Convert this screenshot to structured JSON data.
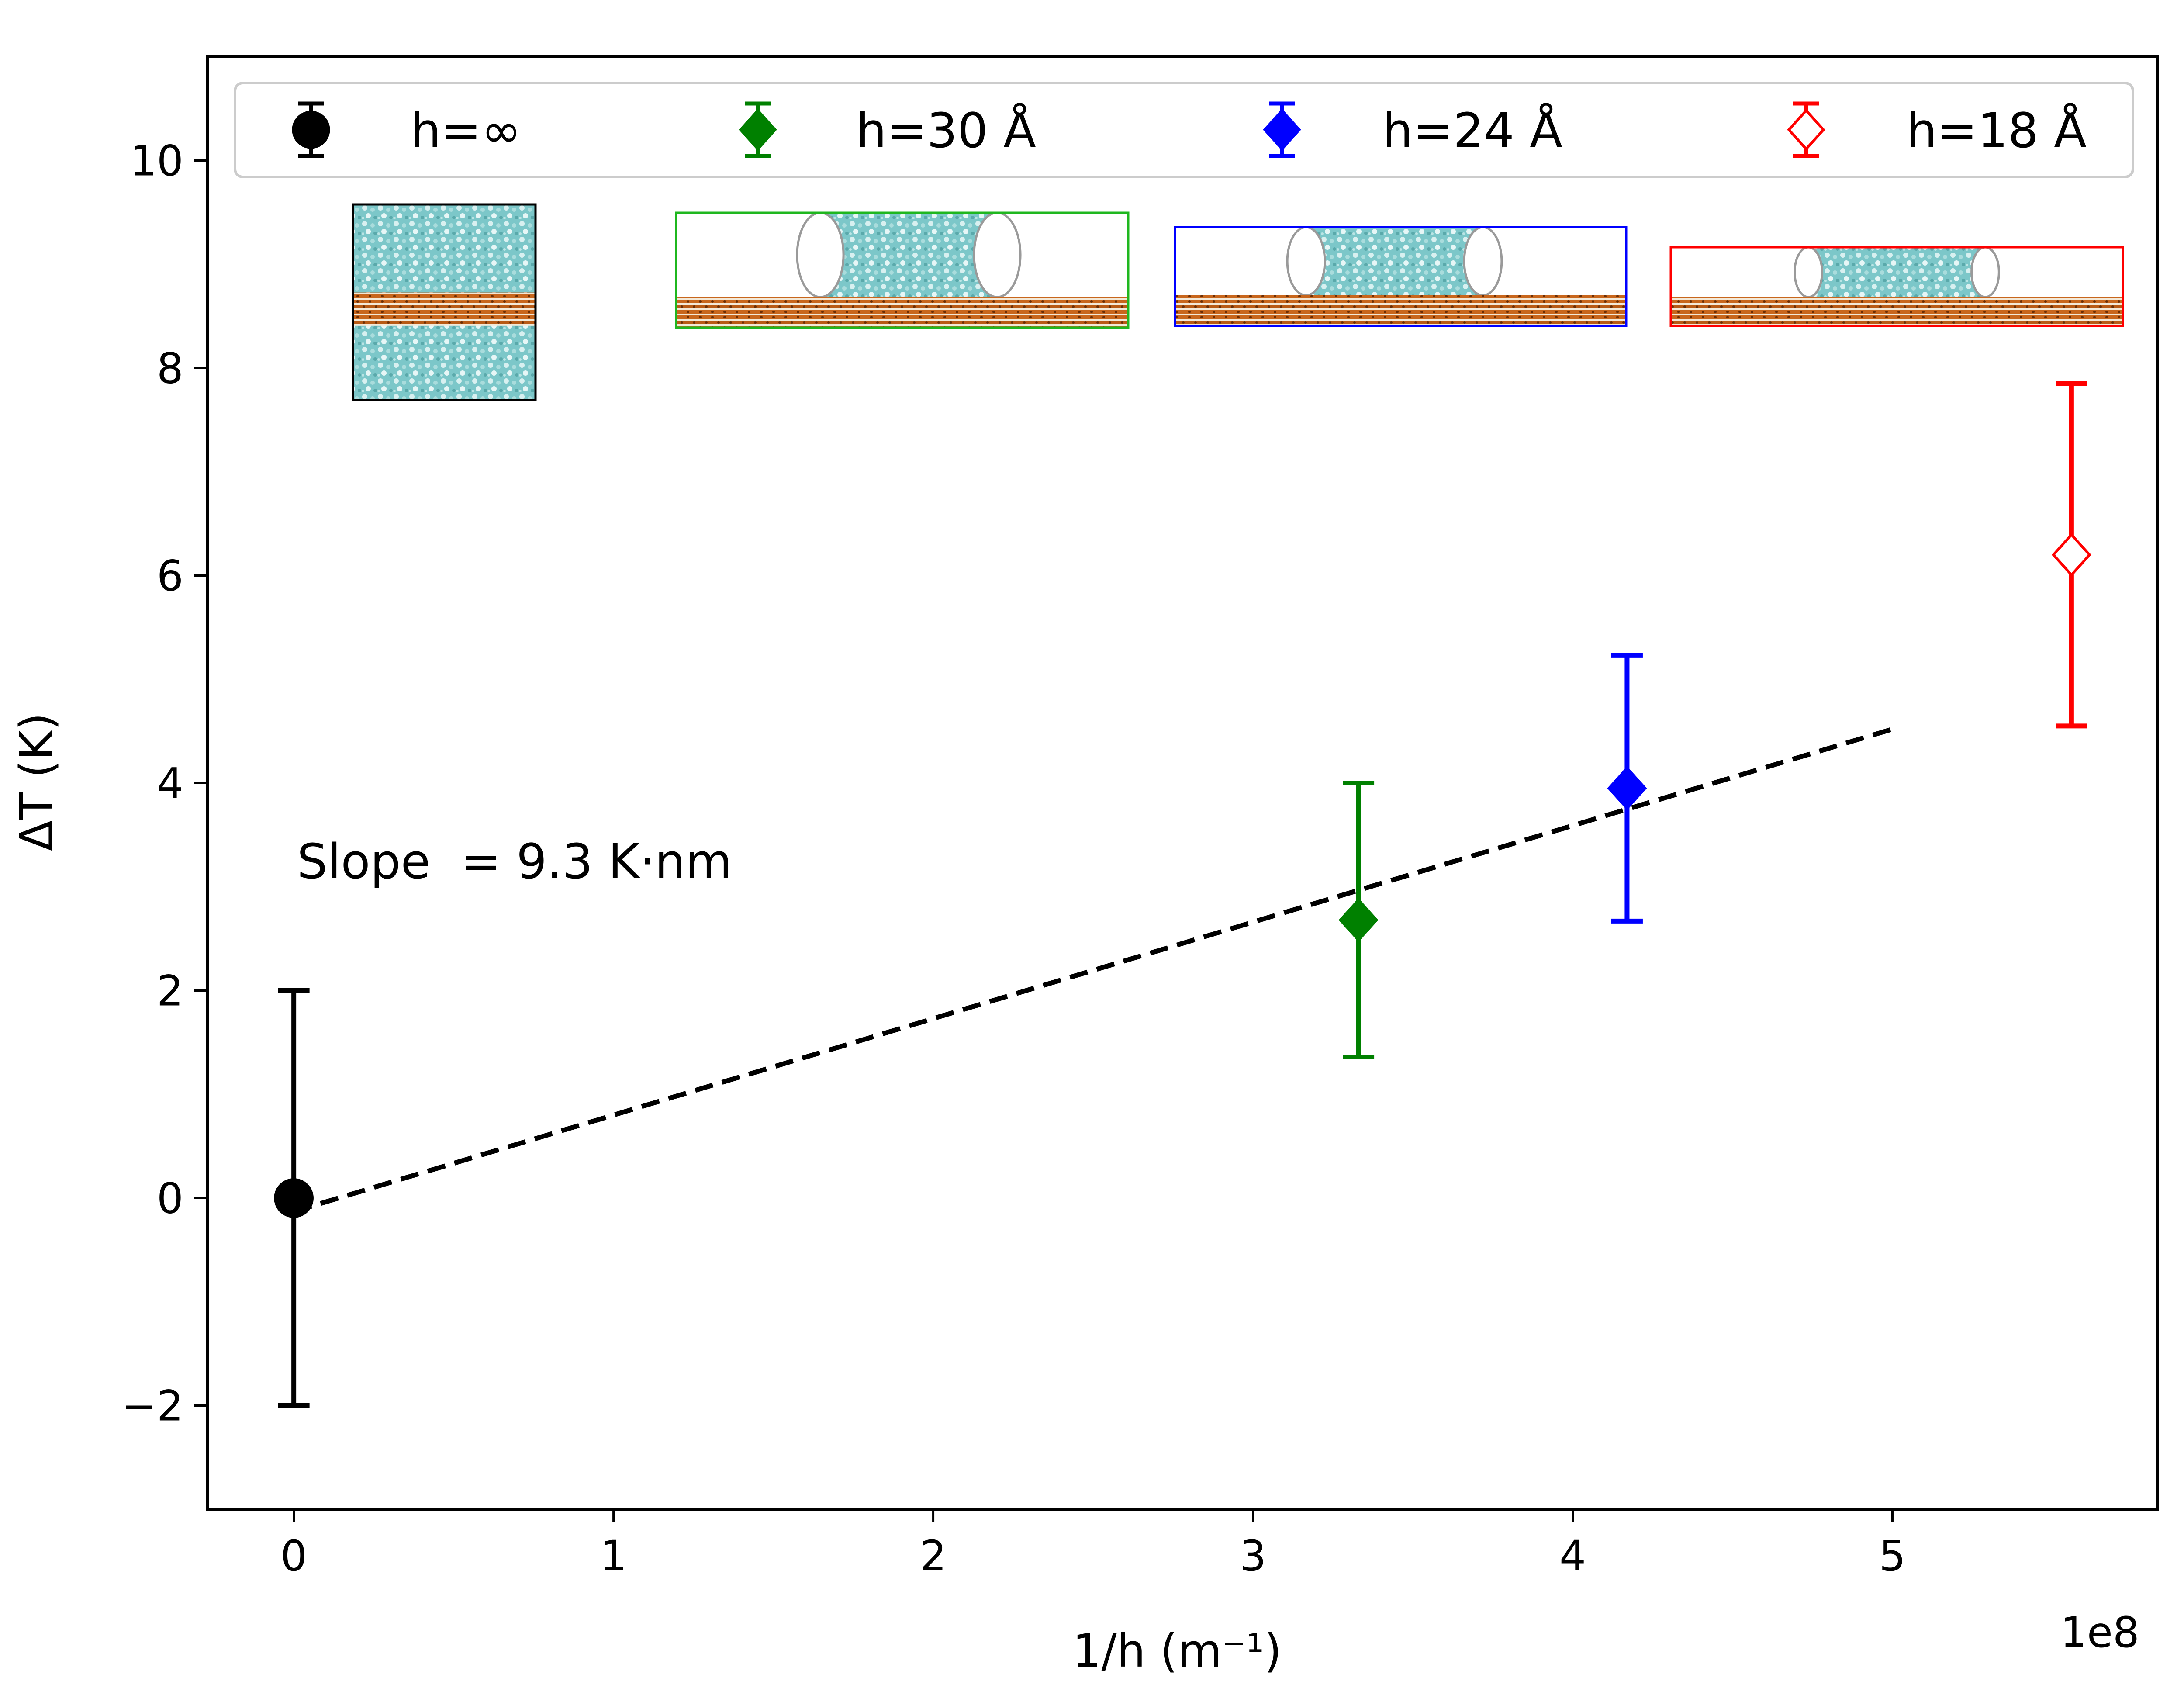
{
  "chart_data": {
    "type": "scatter",
    "title": "",
    "xlabel": "1/h (m⁻¹)",
    "ylabel": "ΔT (K)",
    "x_offset_label": "1e8",
    "xlim": [
      -0.27,
      5.83
    ],
    "ylim": [
      -3.0,
      11.0
    ],
    "x_ticks": [
      0,
      1,
      2,
      3,
      4,
      5
    ],
    "x_tick_labels": [
      "0",
      "1",
      "2",
      "3",
      "4",
      "5"
    ],
    "y_ticks": [
      -2,
      0,
      2,
      4,
      6,
      8,
      10
    ],
    "y_tick_labels": [
      "−2",
      "0",
      "2",
      "4",
      "6",
      "8",
      "10"
    ],
    "grid": false,
    "legend_position": "top",
    "series": [
      {
        "name": "h=∞",
        "color": "#000000",
        "marker": "circle",
        "filled": true,
        "x": 0.0,
        "y": 0.0,
        "yerr": 2.0
      },
      {
        "name": "h=30 Å",
        "color": "#008000",
        "marker": "diamond",
        "filled": true,
        "x": 3.33,
        "y": 2.68,
        "yerr": 1.32
      },
      {
        "name": "h=24 Å",
        "color": "#0000ff",
        "marker": "diamond",
        "filled": true,
        "x": 4.17,
        "y": 3.95,
        "yerr": 1.28
      },
      {
        "name": "h=18 Å",
        "color": "#ff0000",
        "marker": "diamond",
        "filled": false,
        "x": 5.56,
        "y": 6.2,
        "yerr": 1.65
      }
    ],
    "fit_line": {
      "x": [
        0.0,
        5.0
      ],
      "y": [
        -0.13,
        4.52
      ],
      "style": "dashed",
      "color": "#000000"
    },
    "annotation": "Slope  = 9.3 K·nm",
    "insets": [
      {
        "frame_color": "#000000",
        "kind": "bulk"
      },
      {
        "frame_color": "#1fb71f",
        "kind": "film",
        "series": "h=30 Å"
      },
      {
        "frame_color": "#0000ff",
        "kind": "film",
        "series": "h=24 Å"
      },
      {
        "frame_color": "#ff0000",
        "kind": "film",
        "series": "h=18 Å"
      }
    ]
  }
}
